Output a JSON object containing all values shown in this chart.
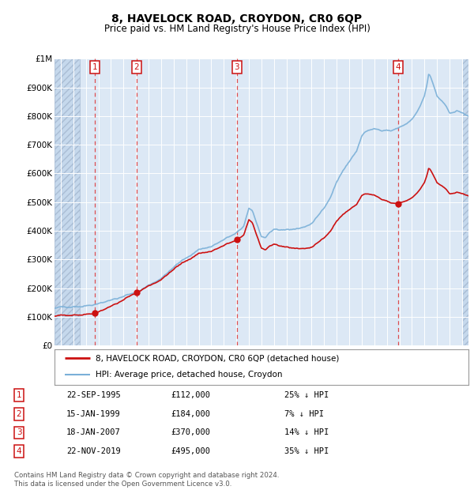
{
  "title": "8, HAVELOCK ROAD, CROYDON, CR0 6QP",
  "subtitle": "Price paid vs. HM Land Registry's House Price Index (HPI)",
  "ylim": [
    0,
    1000000
  ],
  "yticks": [
    0,
    100000,
    200000,
    300000,
    400000,
    500000,
    600000,
    700000,
    800000,
    900000,
    1000000
  ],
  "ytick_labels": [
    "£0",
    "£100K",
    "£200K",
    "£300K",
    "£400K",
    "£500K",
    "£600K",
    "£700K",
    "£800K",
    "£900K",
    "£1M"
  ],
  "hpi_color": "#7ab0d8",
  "price_color": "#cc1111",
  "sale_marker_color": "#cc1111",
  "background_color": "#ffffff",
  "plot_bg_color": "#dce8f5",
  "grid_color": "#c8d8e8",
  "sales": [
    {
      "label": 1,
      "date": "22-SEP-1995",
      "price": 112000,
      "x": 1995.72,
      "hpi_pct": "25% ↓ HPI"
    },
    {
      "label": 2,
      "date": "15-JAN-1999",
      "price": 184000,
      "x": 1999.04,
      "hpi_pct": "7% ↓ HPI"
    },
    {
      "label": 3,
      "date": "18-JAN-2007",
      "price": 370000,
      "x": 2007.04,
      "hpi_pct": "14% ↓ HPI"
    },
    {
      "label": 4,
      "date": "22-NOV-2019",
      "price": 495000,
      "x": 2019.89,
      "hpi_pct": "35% ↓ HPI"
    }
  ],
  "legend_price_label": "8, HAVELOCK ROAD, CROYDON, CR0 6QP (detached house)",
  "legend_hpi_label": "HPI: Average price, detached house, Croydon",
  "footer": "Contains HM Land Registry data © Crown copyright and database right 2024.\nThis data is licensed under the Open Government Licence v3.0.",
  "xmin": 1992.5,
  "xmax": 2025.5,
  "hatch_left_end": 1994.5,
  "hatch_right_start": 2025.0
}
